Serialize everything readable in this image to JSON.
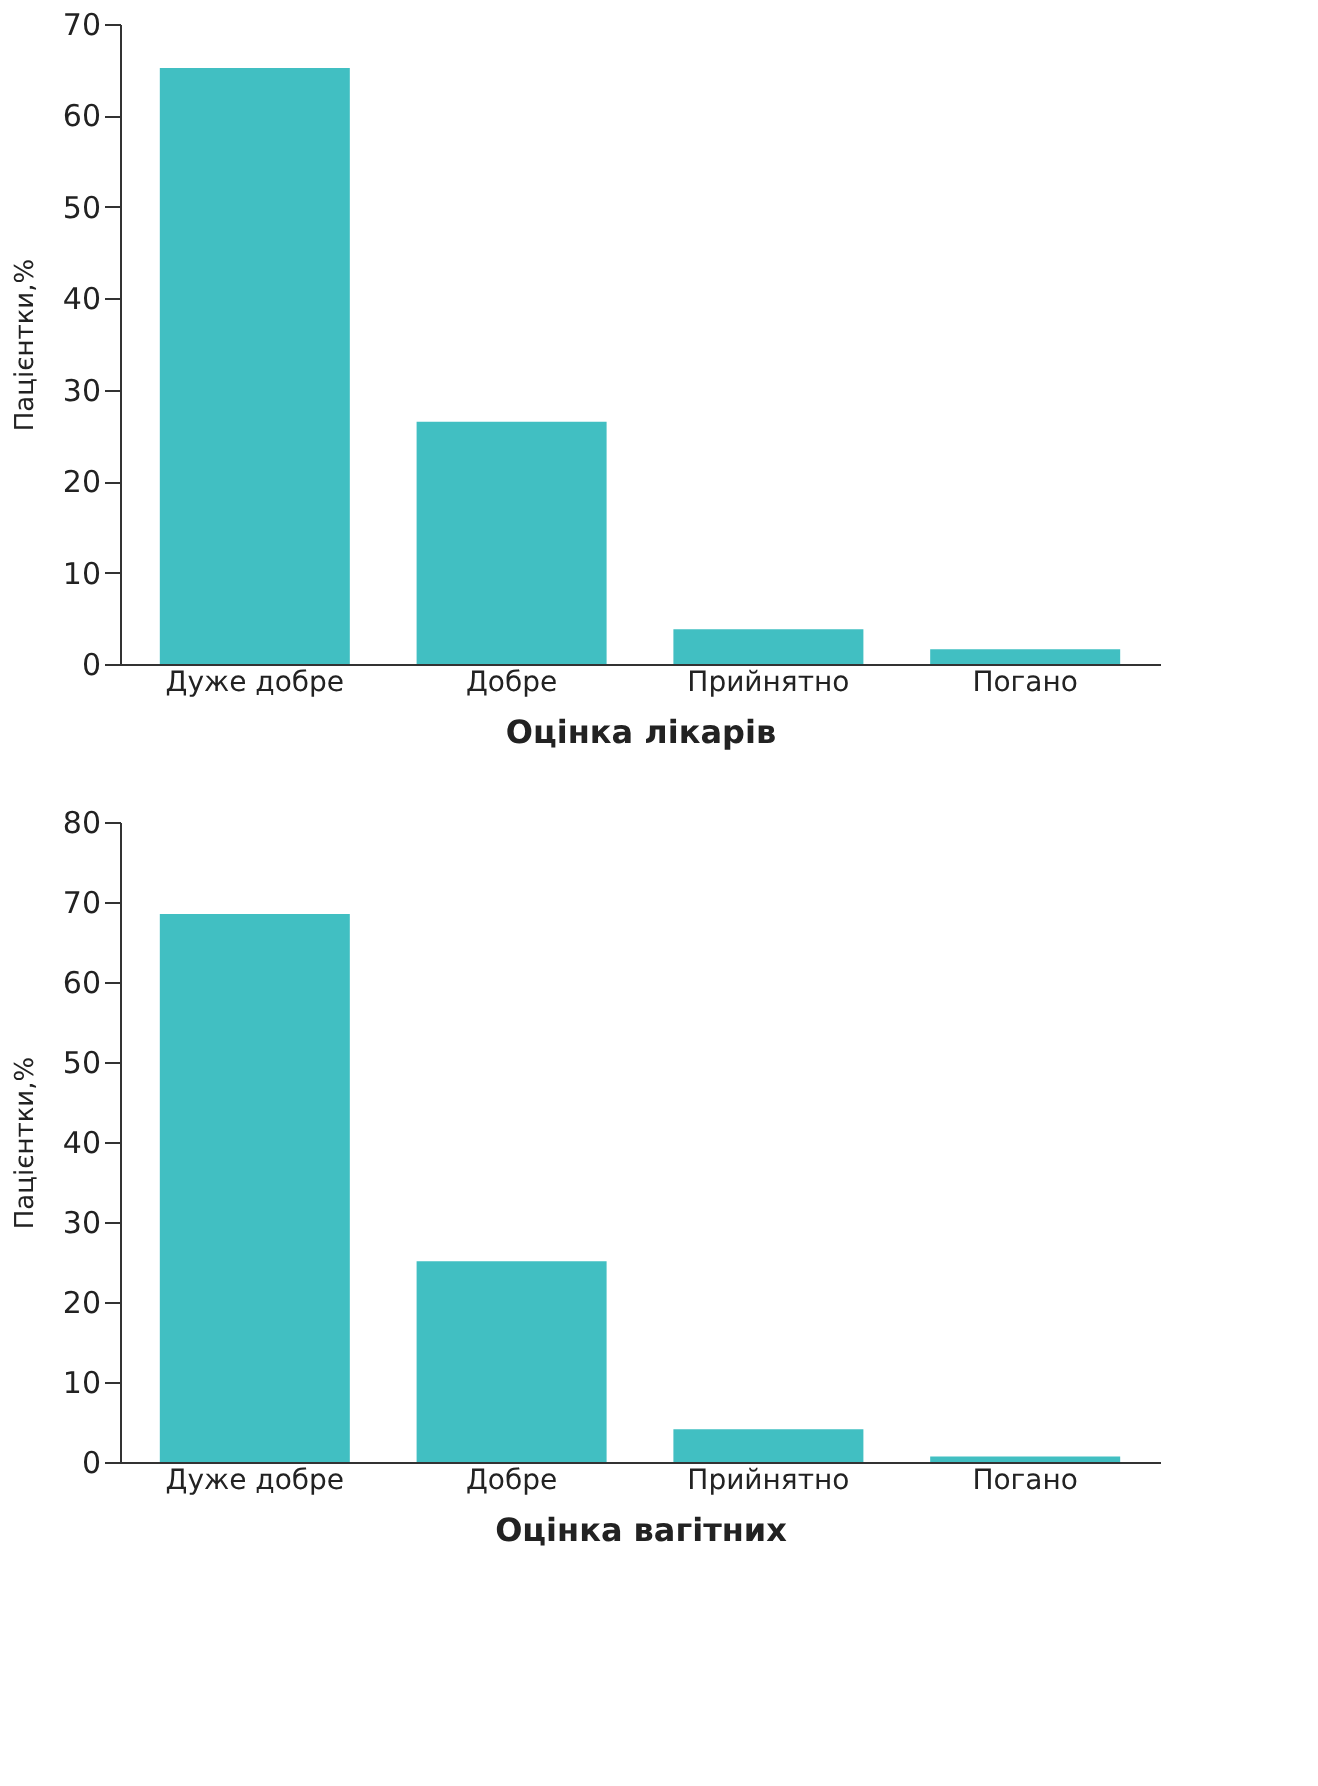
{
  "chart_data": [
    {
      "type": "bar",
      "categories": [
        "Дуже добре",
        "Добре",
        "Прийнятно",
        "Погано"
      ],
      "values": [
        65.2,
        26.5,
        3.8,
        1.6
      ],
      "color": "#41bfc2",
      "xlabel": "Оцінка лікарів",
      "ylabel": "Пацієнтки,%",
      "ylim": [
        0,
        70
      ],
      "yticks": [
        0,
        10,
        20,
        30,
        40,
        50,
        60,
        70
      ],
      "grid": false
    },
    {
      "type": "bar",
      "categories": [
        "Дуже добре",
        "Добре",
        "Прийнятно",
        "Погано"
      ],
      "values": [
        68.5,
        25.1,
        4.1,
        0.7
      ],
      "color": "#41bfc2",
      "xlabel": "Оцінка вагітних",
      "ylabel": "Пацієнтки,%",
      "ylim": [
        0,
        80
      ],
      "yticks": [
        0,
        10,
        20,
        30,
        40,
        50,
        60,
        70,
        80
      ],
      "grid": false
    }
  ]
}
